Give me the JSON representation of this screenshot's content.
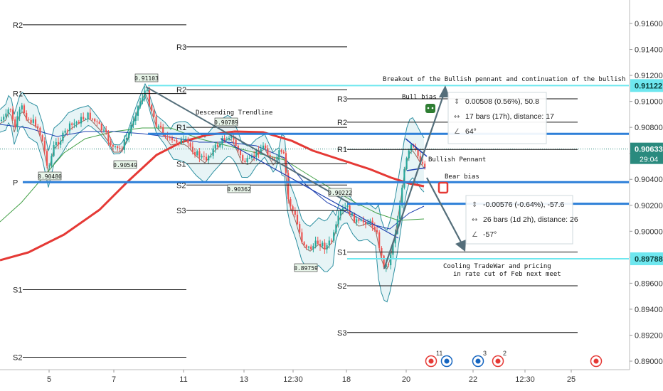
{
  "chart_data": {
    "type": "candlestick",
    "y_axis": {
      "range": [
        0.8888,
        0.918
      ],
      "ticks": [
        "0.89000",
        "0.89200",
        "0.89400",
        "0.89600",
        "0.89800",
        "0.90000",
        "0.90200",
        "0.90400",
        "0.90600",
        "0.90800",
        "0.91000",
        "0.91200",
        "0.91400",
        "0.91600"
      ],
      "tick_values": [
        0.89,
        0.892,
        0.894,
        0.896,
        0.898,
        0.9,
        0.902,
        0.904,
        0.906,
        0.908,
        0.91,
        0.912,
        0.914,
        0.916
      ]
    },
    "x_axis": {
      "ticks": [
        "5",
        "7",
        "11",
        "13",
        "12:30",
        "18",
        "20",
        "22",
        "12:30",
        "25"
      ]
    },
    "current_price": {
      "value": 0.90633,
      "label": "0.90633",
      "countdown": "29:04",
      "color": "#2a8a7e"
    },
    "price_labels": [
      {
        "label": "0.91122",
        "value": 0.91122,
        "color": "#6ee7ef"
      },
      {
        "label": "0.89788",
        "value": 0.89788,
        "color": "#6ee7ef"
      }
    ],
    "pivot_sets": [
      {
        "labels": [
          "R2",
          "R1",
          "P",
          "S1",
          "S2"
        ],
        "values": [
          0.9159,
          0.9106,
          0.90378,
          0.8955,
          0.8903
        ]
      },
      {
        "labels": [
          "R3",
          "R2",
          "R1",
          "S1",
          "S2",
          "S3"
        ],
        "values": [
          0.9142,
          0.9109,
          0.908,
          0.9052,
          0.90356,
          0.9016
        ]
      },
      {
        "labels": [
          "R3",
          "R2",
          "R1",
          "S1",
          "S2",
          "S3"
        ],
        "values": [
          0.9102,
          0.9084,
          0.9063,
          0.8984,
          0.8958,
          0.8922
        ]
      }
    ],
    "horizontal_levels": [
      {
        "value": 0.9075,
        "color": "#2d7fd8"
      },
      {
        "value": 0.90378,
        "color": "#2d7fd8"
      },
      {
        "value": 0.90212,
        "color": "#2d7fd8"
      },
      {
        "value": 0.91122,
        "color": "#6ee7ef"
      },
      {
        "value": 0.89788,
        "color": "#6ee7ef"
      }
    ],
    "price_callouts": [
      "0.91103",
      "0.90789",
      "0.90480",
      "0.90549",
      "0.90362",
      "0.90222",
      "0.89759"
    ],
    "annotations": {
      "descending_trendline": "Descending Trendline",
      "breakout": "Breakout of the Bullish pennant and continuation of the bullish trend.",
      "bull_bias": "Bull bias",
      "bullish_pennant": "Bullish Pennant",
      "bear_bias": "Bear bias",
      "cooling_line1": "Cooling TradeWar and pricing",
      "cooling_line2": "in rate cut of Feb next meet"
    },
    "measure_boxes": [
      {
        "lines": [
          "0.00508 (0.56%), 50.8",
          "17 bars (17h), distance: 17",
          "64°"
        ]
      },
      {
        "lines": [
          "-0.00576 (-0.64%), -57.6",
          "26 bars (1d 2h), distance: 26",
          "-57°"
        ]
      }
    ],
    "event_markers": [
      {
        "count": "11"
      },
      {
        "count": ""
      },
      {
        "count": "3"
      },
      {
        "count": "2"
      },
      {
        "count": ""
      }
    ],
    "colors": {
      "up_candle": "#26a69a",
      "down_candle": "#ef5350",
      "ma_red": "#e53935",
      "ma_green": "#43a047",
      "bollinger": "#2c8fa0",
      "trend_arrow": "#546e7a"
    }
  }
}
